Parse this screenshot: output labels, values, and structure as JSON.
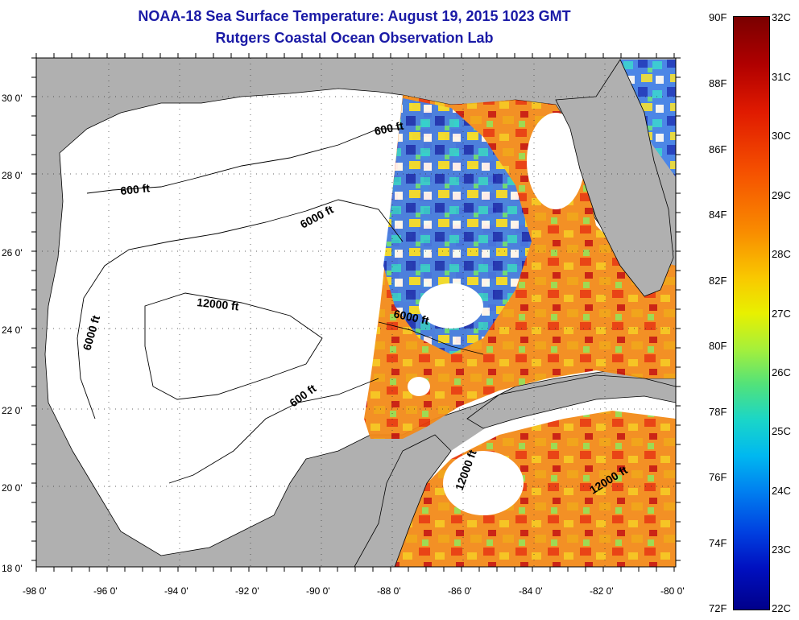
{
  "title": {
    "line1": "NOAA-18 Sea Surface Temperature:  August 19, 2015 1023 GMT",
    "line2": "Rutgers Coastal Ocean Observation Lab"
  },
  "map": {
    "latitude_labels": [
      "30 0'",
      "28 0'",
      "26 0'",
      "24 0'",
      "22 0'",
      "20 0'",
      "18 0'"
    ],
    "longitude_labels": [
      "-98 0'",
      "-96 0'",
      "-94 0'",
      "-92 0'",
      "-90 0'",
      "-88 0'",
      "-86 0'",
      "-84 0'",
      "-82 0'",
      "-80 0'"
    ],
    "latitude_range": [
      18,
      31
    ],
    "longitude_range": [
      -98,
      -80
    ],
    "contour_labels": [
      "600 ft",
      "6000 ft",
      "12000 ft",
      "6000 ft",
      "600 ft",
      "600 ft",
      "6000 ft",
      "12000 ft",
      "12000 ft"
    ],
    "land_color": "#b0b0b0",
    "no_data_color": "#ffffff"
  },
  "colorbar": {
    "fahrenheit_labels": [
      "90F",
      "88F",
      "86F",
      "84F",
      "82F",
      "80F",
      "78F",
      "76F",
      "74F",
      "72F"
    ],
    "celsius_labels": [
      "32C",
      "31C",
      "30C",
      "29C",
      "28C",
      "27C",
      "26C",
      "25C",
      "24C",
      "23C",
      "22C"
    ],
    "colors_top_to_bottom": [
      "#7a0000",
      "#e01a00",
      "#f98a00",
      "#e8f000",
      "#1ad6c8",
      "#0080f0",
      "#00008a"
    ]
  }
}
